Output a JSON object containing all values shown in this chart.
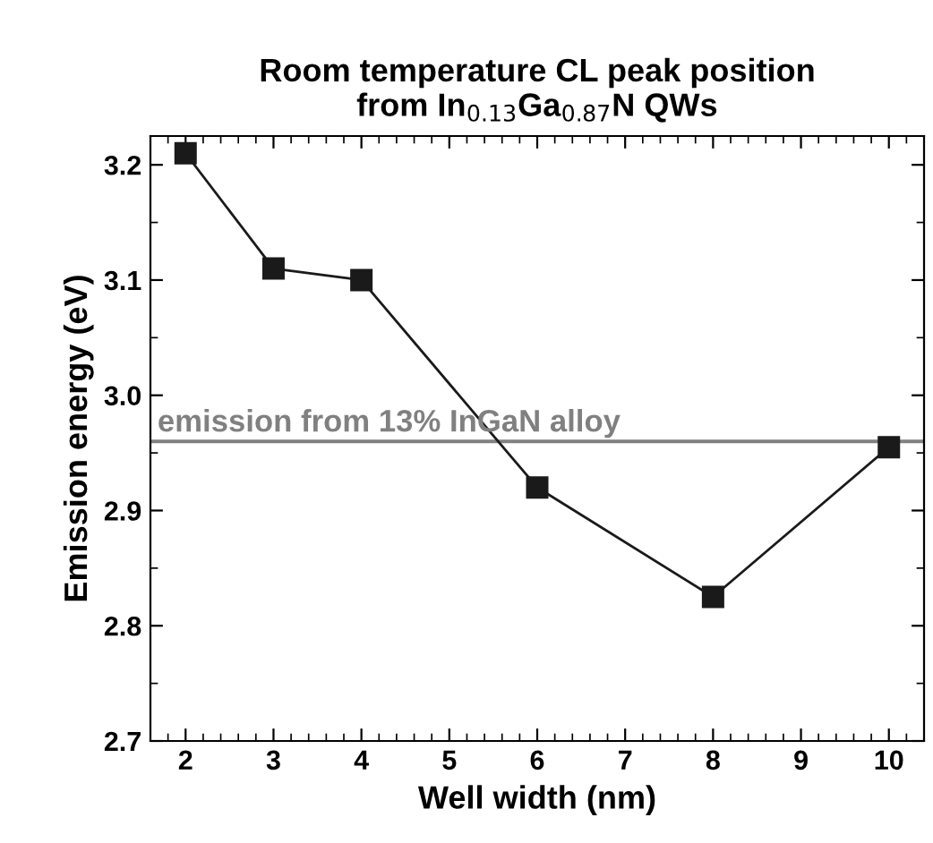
{
  "chart_data": {
    "type": "line",
    "title": "Room temperature CL peak position\nfrom In$_{0.13}$Ga$_{0.87}$N QWs",
    "xlabel": "Well width (nm)",
    "ylabel": "Emission energy (eV)",
    "x": [
      2,
      3,
      4,
      6,
      8,
      10
    ],
    "series": [
      {
        "color": "#1a1a1a",
        "values": [
          3.21,
          3.11,
          3.1,
          2.92,
          2.825,
          2.955
        ]
      }
    ],
    "xlim": [
      1.6,
      10.4
    ],
    "xticks": [
      2,
      3,
      4,
      5,
      6,
      7,
      8,
      9,
      10
    ],
    "ylim": [
      2.7,
      3.225
    ],
    "yticks": [
      2.7,
      2.8,
      2.9,
      {
        "value": 3.0,
        "label": "3.0"
      },
      3.1,
      3.2
    ],
    "ref_lines": [
      {
        "axis": "y",
        "value": 2.96,
        "label": "emission from 13% InGaN alloy",
        "color": "#808080"
      }
    ],
    "marker": "square",
    "line_style": "solid",
    "grid": false,
    "legend": false
  }
}
